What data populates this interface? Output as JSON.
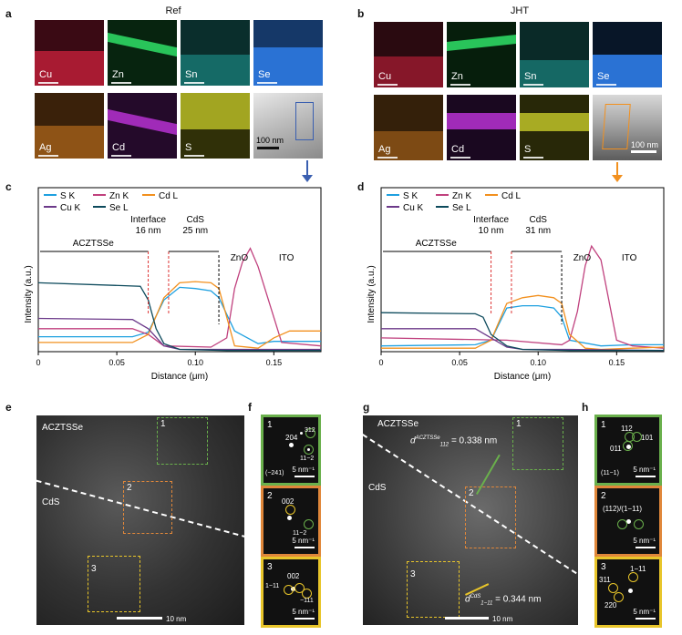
{
  "panels": {
    "a": {
      "label": "a",
      "title": "Ref"
    },
    "b": {
      "label": "b",
      "title": "JHT"
    },
    "c": {
      "label": "c"
    },
    "d": {
      "label": "d"
    },
    "e": {
      "label": "e"
    },
    "f": {
      "label": "f"
    },
    "g": {
      "label": "g"
    },
    "h": {
      "label": "h"
    }
  },
  "maps": {
    "ref": [
      {
        "label": "Cu",
        "color": "#c41f3a"
      },
      {
        "label": "Zn",
        "color": "#29c45a"
      },
      {
        "label": "Sn",
        "color": "#1fa6a0"
      },
      {
        "label": "Se",
        "color": "#2a72d4"
      },
      {
        "label": "Ag",
        "color": "#c6741e"
      },
      {
        "label": "Cd",
        "color": "#a02bb8"
      },
      {
        "label": "S",
        "color": "#c8cc2a"
      }
    ],
    "jht": [
      {
        "label": "Cu",
        "color": "#c41f3a"
      },
      {
        "label": "Zn",
        "color": "#29c45a"
      },
      {
        "label": "Sn",
        "color": "#1fa6a0"
      },
      {
        "label": "Se",
        "color": "#2a72d4"
      },
      {
        "label": "Ag",
        "color": "#c6741e"
      },
      {
        "label": "Cd",
        "color": "#a02bb8"
      },
      {
        "label": "S",
        "color": "#c8cc2a"
      }
    ],
    "ref_scale": "100 nm",
    "jht_scale": "100 nm"
  },
  "chart_data": [
    {
      "type": "line",
      "panel": "c",
      "xlabel": "Distance (μm)",
      "ylabel": "Intensity (a.u.)",
      "xlim": [
        0,
        0.18
      ],
      "xticks": [
        "0",
        "0.05",
        "0.10",
        "0.15"
      ],
      "legend": [
        "S K",
        "Zn K",
        "Cd L",
        "Cu K",
        "Se L"
      ],
      "annotations": {
        "region1": "ACZTSSe",
        "interface": "Interface",
        "interface_width": "16 nm",
        "cds": "CdS",
        "cds_width": "25 nm",
        "zno": "ZnO",
        "ito": "ITO"
      },
      "series": [
        {
          "name": "S K",
          "color": "#1ea0e0",
          "x": [
            0,
            0.06,
            0.07,
            0.08,
            0.09,
            0.1,
            0.11,
            0.115,
            0.125,
            0.14,
            0.15,
            0.16,
            0.18
          ],
          "y": [
            0.13,
            0.13,
            0.17,
            0.45,
            0.56,
            0.55,
            0.53,
            0.47,
            0.18,
            0.07,
            0.09,
            0.09,
            0.09
          ]
        },
        {
          "name": "Zn K",
          "color": "#c0417e",
          "x": [
            0,
            0.06,
            0.07,
            0.08,
            0.11,
            0.12,
            0.125,
            0.13,
            0.135,
            0.14,
            0.15,
            0.155,
            0.18
          ],
          "y": [
            0.2,
            0.2,
            0.15,
            0.05,
            0.04,
            0.12,
            0.55,
            0.78,
            0.9,
            0.74,
            0.3,
            0.08,
            0.05
          ]
        },
        {
          "name": "Cd L",
          "color": "#f2901e",
          "x": [
            0,
            0.06,
            0.07,
            0.08,
            0.09,
            0.1,
            0.11,
            0.115,
            0.12,
            0.125,
            0.14,
            0.15,
            0.16,
            0.18
          ],
          "y": [
            0.08,
            0.08,
            0.15,
            0.47,
            0.6,
            0.61,
            0.6,
            0.55,
            0.3,
            0.05,
            0.03,
            0.12,
            0.18,
            0.18
          ]
        },
        {
          "name": "Cu K",
          "color": "#6c3a8a",
          "x": [
            0,
            0.06,
            0.07,
            0.08,
            0.09,
            0.12,
            0.18
          ],
          "y": [
            0.29,
            0.28,
            0.2,
            0.05,
            0.02,
            0.02,
            0.02
          ]
        },
        {
          "name": "Se L",
          "color": "#0d4a5c",
          "x": [
            0,
            0.065,
            0.07,
            0.075,
            0.08,
            0.09,
            0.12,
            0.18
          ],
          "y": [
            0.6,
            0.57,
            0.45,
            0.2,
            0.07,
            0.02,
            0.01,
            0.01
          ]
        }
      ]
    },
    {
      "type": "line",
      "panel": "d",
      "xlabel": "Distance (μm)",
      "ylabel": "Intensity (a.u.)",
      "xlim": [
        0,
        0.18
      ],
      "xticks": [
        "0",
        "0.05",
        "0.10",
        "0.15"
      ],
      "legend": [
        "S K",
        "Zn K",
        "Cd L",
        "Cu K",
        "Se L"
      ],
      "annotations": {
        "region1": "ACZTSSe",
        "interface": "Interface",
        "interface_width": "10 nm",
        "cds": "CdS",
        "cds_width": "31 nm",
        "zno": "ZnO",
        "ito": "ITO"
      },
      "series": [
        {
          "name": "S K",
          "color": "#1ea0e0",
          "x": [
            0,
            0.06,
            0.07,
            0.08,
            0.09,
            0.1,
            0.11,
            0.115,
            0.12,
            0.14,
            0.16,
            0.18
          ],
          "y": [
            0.05,
            0.06,
            0.1,
            0.38,
            0.4,
            0.4,
            0.38,
            0.3,
            0.1,
            0.05,
            0.06,
            0.06
          ]
        },
        {
          "name": "Zn K",
          "color": "#c0417e",
          "x": [
            0,
            0.08,
            0.115,
            0.12,
            0.125,
            0.13,
            0.134,
            0.14,
            0.145,
            0.15,
            0.16,
            0.18
          ],
          "y": [
            0.12,
            0.1,
            0.06,
            0.1,
            0.35,
            0.75,
            0.92,
            0.8,
            0.45,
            0.1,
            0.05,
            0.03
          ]
        },
        {
          "name": "Cd L",
          "color": "#f2901e",
          "x": [
            0,
            0.06,
            0.07,
            0.08,
            0.09,
            0.1,
            0.11,
            0.115,
            0.12,
            0.13,
            0.14,
            0.16,
            0.18
          ],
          "y": [
            0.03,
            0.03,
            0.1,
            0.42,
            0.47,
            0.49,
            0.47,
            0.42,
            0.15,
            0.03,
            0.02,
            0.03,
            0.04
          ]
        },
        {
          "name": "Cu K",
          "color": "#6c3a8a",
          "x": [
            0,
            0.06,
            0.07,
            0.08,
            0.09,
            0.12,
            0.18
          ],
          "y": [
            0.2,
            0.2,
            0.12,
            0.04,
            0.02,
            0.02,
            0.01
          ]
        },
        {
          "name": "Se L",
          "color": "#0d4a5c",
          "x": [
            0,
            0.06,
            0.065,
            0.07,
            0.08,
            0.09,
            0.12,
            0.18
          ],
          "y": [
            0.34,
            0.33,
            0.3,
            0.15,
            0.05,
            0.02,
            0.01,
            0.01
          ]
        }
      ]
    }
  ],
  "tem": {
    "e": {
      "top_label": "ACZTSSe",
      "bottom_label": "CdS",
      "regions": [
        "1",
        "2",
        "3"
      ],
      "scale": "10 nm"
    },
    "g": {
      "top_label": "ACZTSSe",
      "bottom_label": "CdS",
      "regions": [
        "1",
        "2",
        "3"
      ],
      "scale": "10 nm",
      "d_top": "d",
      "d_top_sup": "ACZTSSe",
      "d_top_sub": "112",
      "d_top_val": "= 0.338 nm",
      "d_bot": "d",
      "d_bot_sup": "CdS",
      "d_bot_sub": "1−11",
      "d_bot_val": "= 0.344 nm"
    }
  },
  "fft_f": [
    {
      "num": "1",
      "border": "#6ab04c",
      "labels": [
        "204",
        "312",
        "11−2",
        "(−241)"
      ],
      "scale": "5 nm⁻¹"
    },
    {
      "num": "2",
      "border": "#e0873a",
      "labels": [
        "002",
        "11−2"
      ],
      "scale": "5 nm⁻¹"
    },
    {
      "num": "3",
      "border": "#e8c52a",
      "labels": [
        "002",
        "1−11",
        "−111"
      ],
      "scale": "5 nm⁻¹"
    }
  ],
  "fft_h": [
    {
      "num": "1",
      "border": "#6ab04c",
      "labels": [
        "112",
        "101",
        "011",
        "(11−1)"
      ],
      "scale": "5 nm⁻¹"
    },
    {
      "num": "2",
      "border": "#e0873a",
      "labels": [
        "(112)/(1−11)"
      ],
      "scale": "5 nm⁻¹"
    },
    {
      "num": "3",
      "border": "#e8c52a",
      "labels": [
        "1−11",
        "311",
        "220"
      ],
      "scale": "5 nm⁻¹"
    }
  ]
}
